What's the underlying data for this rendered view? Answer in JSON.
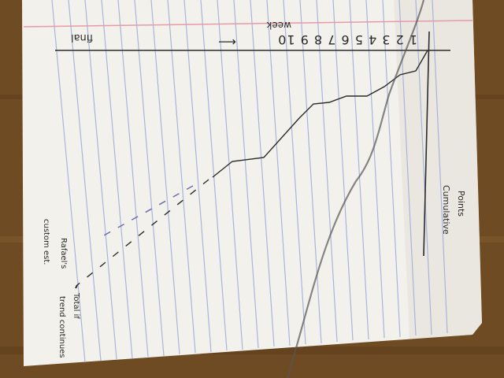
{
  "photo": {
    "subject": "hand-drawn chart on lined notebook paper, photographed sideways on a wooden table",
    "colors": {
      "table": "#7a5428",
      "paper": "#f4f2ee",
      "rule_lines": "#a9b3dc",
      "margin_line": "#e79aa6",
      "ink": "#2b2b2b",
      "ink_blue": "#6d6bb3"
    }
  },
  "labels": {
    "axis_top": "final",
    "x_numbers": "1 2 3 4 5 6 7 8 9 10",
    "x_arrow": "⟵",
    "x_caption": "week",
    "y_caption_line1": "Cumulative",
    "y_caption_line2": "Points",
    "proj1_line1": "Rafael's",
    "proj1_line2": "custom est.",
    "proj2_line1": "Total if",
    "proj2_line2": "trend continues"
  }
}
